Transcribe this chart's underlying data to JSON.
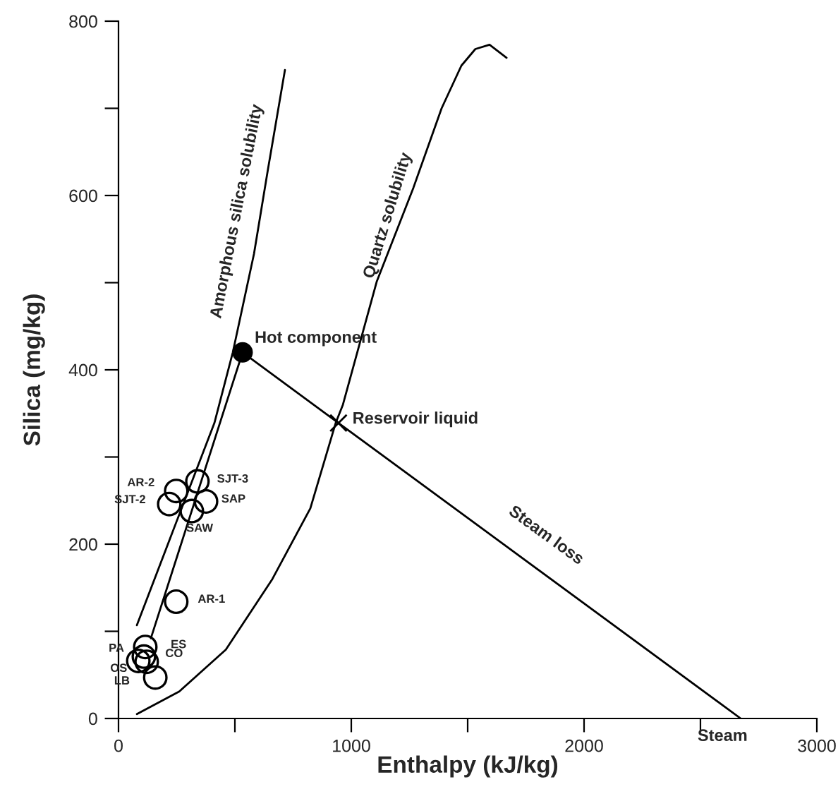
{
  "chart_data": {
    "type": "scatter",
    "xlabel": "Enthalpy (kJ/kg)",
    "ylabel": "Silica (mg/kg)",
    "xlim": [
      0,
      3000
    ],
    "ylim": [
      0,
      800
    ],
    "xticks": [
      0,
      {
        "value": 500,
        "label": null
      },
      1000,
      {
        "value": 1500,
        "label": null
      },
      2000,
      {
        "value": 2500,
        "label": null
      },
      3000
    ],
    "yticks": [
      0,
      {
        "value": 100,
        "label": null
      },
      200,
      {
        "value": 300,
        "label": null
      },
      400,
      {
        "value": 500,
        "label": null
      },
      600,
      {
        "value": 700,
        "label": null
      },
      800
    ],
    "grid": false,
    "legend": false,
    "series": [
      {
        "type": "line",
        "color": "#000000",
        "marker": "none",
        "x": [
          79,
          248,
          412,
          491,
          582,
          642,
          715
        ],
        "values": [
          107,
          225,
          339,
          420,
          533,
          630,
          744
        ]
      },
      {
        "type": "line",
        "color": "#000000",
        "marker": "none",
        "x": [
          79,
          261,
          461,
          661,
          824,
          933,
          964,
          1109,
          1267,
          1388,
          1473,
          1533,
          1594,
          1667
        ],
        "values": [
          5,
          31,
          79,
          160,
          241,
          339,
          360,
          501,
          609,
          700,
          749,
          768,
          773,
          758
        ]
      },
      {
        "type": "line",
        "color": "#000000",
        "marker": "none",
        "x": [
          533,
          139
        ],
        "values": [
          420,
          92
        ]
      },
      {
        "type": "line",
        "color": "#000000",
        "marker": "none",
        "x": [
          533,
          945,
          2673
        ],
        "values": [
          420,
          339,
          0
        ]
      },
      {
        "color": "#000000",
        "marker": "circle",
        "x": [
          339,
          248,
          218,
          315,
          376,
          248,
          115,
          109,
          85,
          121,
          158
        ],
        "values": [
          272,
          261,
          246,
          238,
          249,
          134,
          82,
          71,
          66,
          65,
          47
        ],
        "value_labels": [
          "SJT-3",
          "AR-2",
          "SJT-2",
          "SAW",
          "SAP",
          "AR-1",
          "ES",
          "PA",
          "OS",
          "CO",
          "LB"
        ]
      },
      {
        "color": "#000000",
        "marker": "circle",
        "x": [
          533
        ],
        "values": [
          420
        ]
      },
      {
        "color": "#000000",
        "marker": "cross",
        "x": [
          945
        ],
        "values": [
          339
        ]
      }
    ],
    "annotations": [
      "Amorphous silica solubility",
      "Quartz solubility",
      "Steam loss",
      "Hot component",
      "Reservoir liquid",
      "Steam"
    ]
  }
}
